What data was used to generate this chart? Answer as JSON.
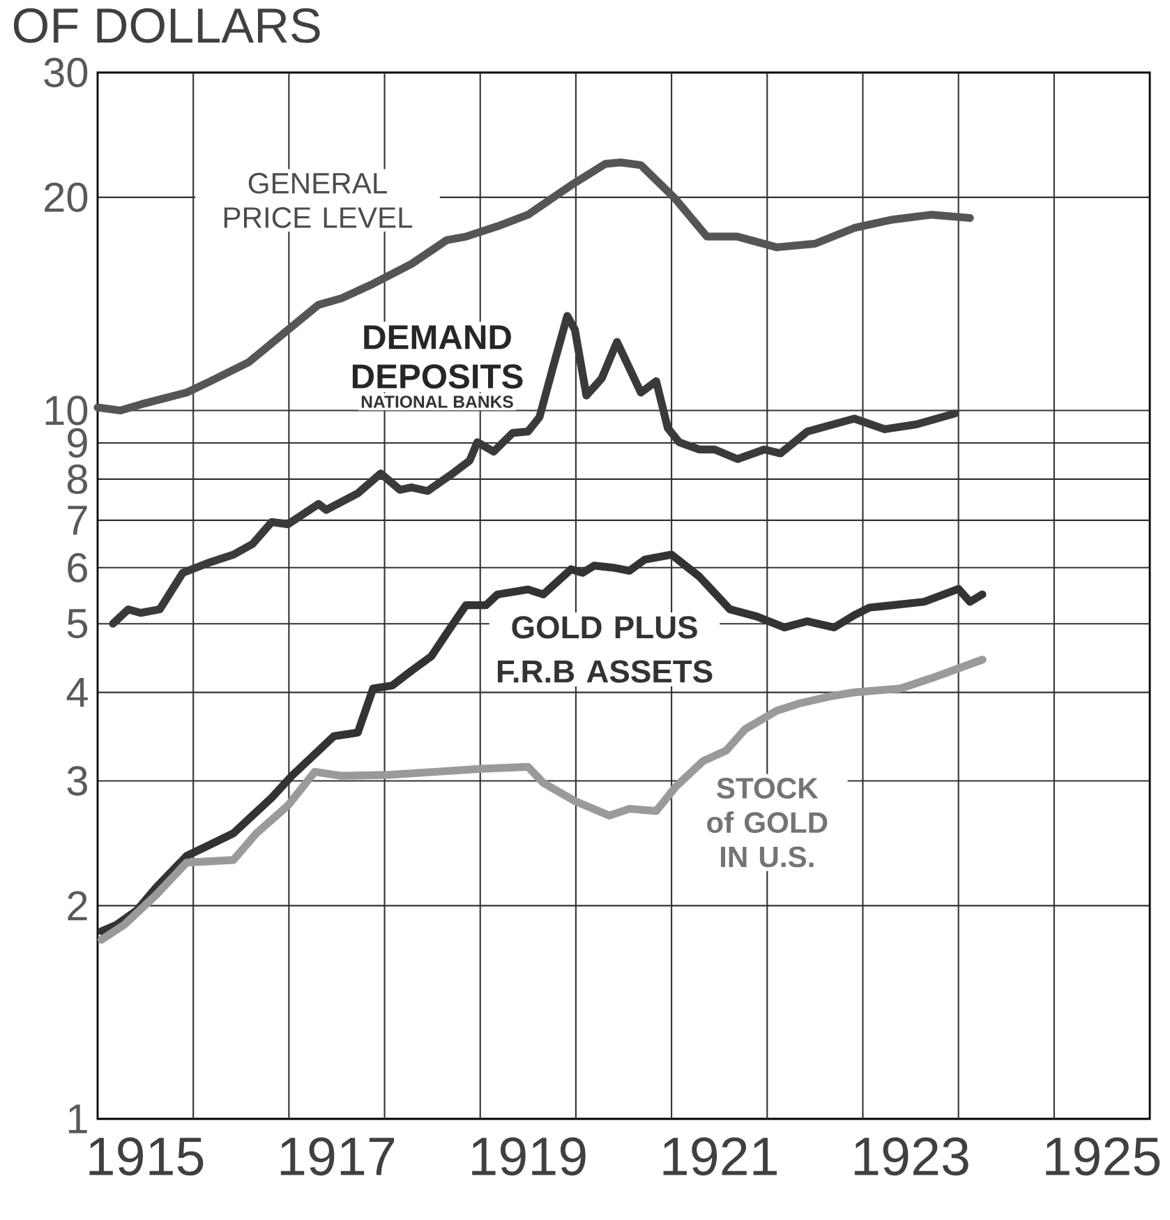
{
  "chart_data": {
    "type": "line",
    "ylabel": "OF DOLLARS",
    "log": "y",
    "grid": true,
    "legend": false,
    "marker": "none",
    "line_style": "solid",
    "xlim": [
      1915,
      1926
    ],
    "ylim": [
      1,
      30
    ],
    "xticks": [
      {
        "value": 1915.5,
        "label": "1915"
      },
      {
        "value": 1917.5,
        "label": "1917"
      },
      {
        "value": 1919.5,
        "label": "1919"
      },
      {
        "value": 1921.5,
        "label": "1921"
      },
      {
        "value": 1923.5,
        "label": "1923"
      },
      {
        "value": 1925.5,
        "label": "1925"
      },
      {
        "value": 1916,
        "label": null
      },
      {
        "value": 1917,
        "label": null
      },
      {
        "value": 1918,
        "label": null
      },
      {
        "value": 1919,
        "label": null
      },
      {
        "value": 1920,
        "label": null
      },
      {
        "value": 1921,
        "label": null
      },
      {
        "value": 1922,
        "label": null
      },
      {
        "value": 1923,
        "label": null
      },
      {
        "value": 1924,
        "label": null
      },
      {
        "value": 1925,
        "label": null
      }
    ],
    "yticks": [
      1,
      2,
      3,
      4,
      5,
      6,
      7,
      8,
      9,
      10,
      20,
      30
    ],
    "annotations": [
      "NATIONAL BANKS"
    ],
    "series": [
      {
        "name": "GENERAL PRICE LEVEL",
        "color": "#555555",
        "x": [
          1915.0,
          1915.24,
          1915.45,
          1915.69,
          1915.93,
          1916.18,
          1916.58,
          1916.99,
          1917.31,
          1917.55,
          1917.88,
          1918.28,
          1918.65,
          1918.85,
          1919.18,
          1919.5,
          1919.95,
          1920.31,
          1920.47,
          1920.68,
          1921.04,
          1921.37,
          1921.69,
          1922.1,
          1922.5,
          1922.91,
          1923.31,
          1923.72,
          1924.12
        ],
        "values": [
          10.1,
          10.0,
          10.2,
          10.4,
          10.6,
          11.0,
          11.7,
          13.0,
          14.1,
          14.4,
          15.1,
          16.1,
          17.4,
          17.6,
          18.2,
          18.9,
          20.8,
          22.3,
          22.4,
          22.2,
          19.9,
          17.6,
          17.6,
          17.0,
          17.2,
          18.1,
          18.6,
          18.9,
          18.7
        ]
      },
      {
        "name": "DEMAND DEPOSITS",
        "color": "#3a3a3a",
        "x": [
          1915.16,
          1915.32,
          1915.45,
          1915.65,
          1915.89,
          1916.18,
          1916.42,
          1916.62,
          1916.82,
          1916.99,
          1917.31,
          1917.39,
          1917.72,
          1917.96,
          1918.16,
          1918.28,
          1918.45,
          1918.69,
          1918.89,
          1918.97,
          1919.14,
          1919.34,
          1919.5,
          1919.62,
          1919.76,
          1919.91,
          1919.99,
          1920.11,
          1920.27,
          1920.43,
          1920.68,
          1920.84,
          1920.96,
          1921.08,
          1921.29,
          1921.45,
          1921.69,
          1921.97,
          1922.14,
          1922.42,
          1922.91,
          1923.23,
          1923.56,
          1923.96
        ],
        "values": [
          5.0,
          5.24,
          5.18,
          5.24,
          5.9,
          6.11,
          6.26,
          6.48,
          6.96,
          6.91,
          7.38,
          7.24,
          7.64,
          8.15,
          7.73,
          7.79,
          7.7,
          8.11,
          8.5,
          9.02,
          8.75,
          9.3,
          9.34,
          9.79,
          11.5,
          13.6,
          13.0,
          10.5,
          11.1,
          12.5,
          10.6,
          11.0,
          9.45,
          9.02,
          8.81,
          8.81,
          8.54,
          8.81,
          8.7,
          9.34,
          9.74,
          9.41,
          9.56,
          9.9
        ]
      },
      {
        "name": "GOLD PLUS F.R.B ASSETS",
        "color": "#333333",
        "x": [
          1915.04,
          1915.2,
          1915.41,
          1915.61,
          1915.93,
          1916.18,
          1916.42,
          1916.58,
          1916.82,
          1917.03,
          1917.31,
          1917.47,
          1917.72,
          1917.88,
          1918.08,
          1918.28,
          1918.49,
          1918.69,
          1918.85,
          1919.06,
          1919.18,
          1919.5,
          1919.66,
          1919.95,
          1920.07,
          1920.19,
          1920.39,
          1920.56,
          1920.72,
          1921.0,
          1921.29,
          1921.61,
          1921.89,
          1922.18,
          1922.42,
          1922.7,
          1922.91,
          1923.07,
          1923.31,
          1923.64,
          1924.0,
          1924.12,
          1924.25
        ],
        "values": [
          1.84,
          1.88,
          1.97,
          2.12,
          2.35,
          2.44,
          2.53,
          2.65,
          2.84,
          3.05,
          3.31,
          3.47,
          3.51,
          4.05,
          4.09,
          4.29,
          4.5,
          4.94,
          5.31,
          5.31,
          5.5,
          5.59,
          5.5,
          5.97,
          5.9,
          6.04,
          6.0,
          5.94,
          6.16,
          6.26,
          5.83,
          5.24,
          5.12,
          4.94,
          5.04,
          4.94,
          5.14,
          5.27,
          5.31,
          5.37,
          5.6,
          5.37,
          5.5
        ]
      },
      {
        "name": "STOCK of GOLD IN U.S.",
        "color": "#9a9a9a",
        "x": [
          1915.04,
          1915.28,
          1915.61,
          1915.93,
          1916.42,
          1916.66,
          1916.99,
          1917.27,
          1917.55,
          1918.04,
          1918.53,
          1919.01,
          1919.5,
          1919.66,
          1919.99,
          1920.35,
          1920.56,
          1920.84,
          1921.04,
          1921.33,
          1921.57,
          1921.77,
          1922.1,
          1922.34,
          1922.66,
          1922.91,
          1923.39,
          1923.72,
          1924.25
        ],
        "values": [
          1.79,
          1.88,
          2.07,
          2.3,
          2.32,
          2.53,
          2.77,
          3.09,
          3.05,
          3.06,
          3.09,
          3.12,
          3.14,
          2.98,
          2.81,
          2.68,
          2.74,
          2.72,
          2.94,
          3.2,
          3.31,
          3.55,
          3.77,
          3.86,
          3.95,
          4.0,
          4.05,
          4.19,
          4.45
        ]
      }
    ]
  }
}
